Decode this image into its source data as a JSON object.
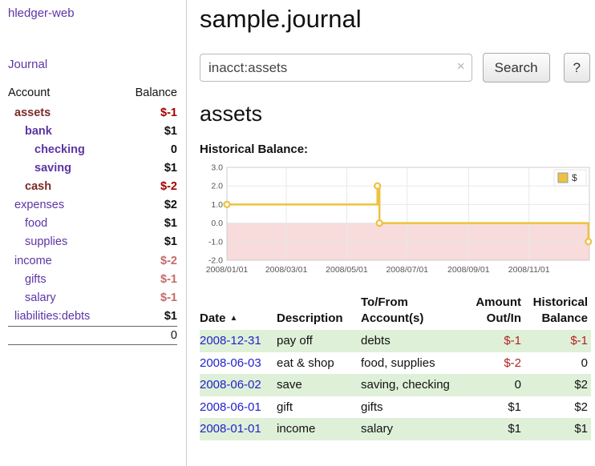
{
  "app": {
    "title": "hledger-web"
  },
  "sidebar": {
    "journal_link": "Journal",
    "accounts_header": {
      "account": "Account",
      "balance": "Balance"
    },
    "accounts": [
      {
        "name": "assets",
        "balance": "$-1",
        "level": 1,
        "bold": true,
        "name_color": "maroon",
        "balance_color": "neg-strong"
      },
      {
        "name": "bank",
        "balance": "$1",
        "level": 2,
        "bold": true,
        "name_color": "purple",
        "balance_color": "pos"
      },
      {
        "name": "checking",
        "balance": "0",
        "level": 3,
        "bold": true,
        "name_color": "purple",
        "balance_color": "pos"
      },
      {
        "name": "saving",
        "balance": "$1",
        "level": 3,
        "bold": true,
        "name_color": "purple",
        "balance_color": "pos"
      },
      {
        "name": "cash",
        "balance": "$-2",
        "level": 2,
        "bold": true,
        "name_color": "maroon",
        "balance_color": "neg-strong"
      },
      {
        "name": "expenses",
        "balance": "$2",
        "level": 1,
        "bold": false,
        "name_color": "purple",
        "balance_color": "pos"
      },
      {
        "name": "food",
        "balance": "$1",
        "level": 2,
        "bold": false,
        "name_color": "purple",
        "balance_color": "pos"
      },
      {
        "name": "supplies",
        "balance": "$1",
        "level": 2,
        "bold": false,
        "name_color": "purple",
        "balance_color": "pos"
      },
      {
        "name": "income",
        "balance": "$-2",
        "level": 1,
        "bold": false,
        "name_color": "purple",
        "balance_color": "neg-soft"
      },
      {
        "name": "gifts",
        "balance": "$-1",
        "level": 2,
        "bold": false,
        "name_color": "purple",
        "balance_color": "neg-soft"
      },
      {
        "name": "salary",
        "balance": "$-1",
        "level": 2,
        "bold": false,
        "name_color": "purple",
        "balance_color": "neg-soft"
      },
      {
        "name": "liabilities:debts",
        "balance": "$1",
        "level": 1,
        "bold": false,
        "name_color": "purple",
        "balance_color": "pos"
      }
    ],
    "total": "0"
  },
  "main": {
    "title": "sample.journal",
    "search": {
      "value": "inacct:assets",
      "clear_icon": "×",
      "button_label": "Search",
      "help_label": "?"
    },
    "heading": "assets"
  },
  "chart_data": {
    "type": "line",
    "title": "Historical Balance:",
    "step": true,
    "series": [
      {
        "name": "$",
        "points": [
          [
            "2008-01-01",
            1
          ],
          [
            "2008-06-01",
            2
          ],
          [
            "2008-06-03",
            0
          ],
          [
            "2008-12-31",
            -1
          ]
        ]
      }
    ],
    "ylim": [
      -2.0,
      3.0
    ],
    "yticks": [
      "3.0",
      "2.0",
      "1.0",
      "0.0",
      "-1.0",
      "-2.0"
    ],
    "xticks": [
      [
        "2008-01-01",
        "2008/01/01"
      ],
      [
        "2008-03-01",
        "2008/03/01"
      ],
      [
        "2008-05-01",
        "2008/05/01"
      ],
      [
        "2008-07-01",
        "2008/07/01"
      ],
      [
        "2008-09-01",
        "2008/09/01"
      ],
      [
        "2008-11-01",
        "2008/11/01"
      ]
    ],
    "x_domain": [
      "2008-01-01",
      "2009-01-01"
    ],
    "legend_position": "top-right",
    "grid": true,
    "line_color": "#edc240",
    "marker_fill": "#ffffff",
    "negative_region_color": "#f8dbdb",
    "grid_color": "#e8e8e8",
    "legend": {
      "label": "$",
      "swatch_color": "#edc240"
    }
  },
  "table": {
    "headers": {
      "date": "Date",
      "sort_icon": "▲",
      "description": "Description",
      "accounts": "To/From\nAccount(s)",
      "amount": "Amount\nOut/In",
      "balance": "Historical\nBalance"
    },
    "rows": [
      {
        "date": "2008-12-31",
        "description": "pay off",
        "accounts": "debts",
        "amount": "$-1",
        "balance": "$-1"
      },
      {
        "date": "2008-06-03",
        "description": "eat & shop",
        "accounts": "food, supplies",
        "amount": "$-2",
        "balance": "0"
      },
      {
        "date": "2008-06-02",
        "description": "save",
        "accounts": "saving, checking",
        "amount": "0",
        "balance": "$2"
      },
      {
        "date": "2008-06-01",
        "description": "gift",
        "accounts": "gifts",
        "amount": "$1",
        "balance": "$2"
      },
      {
        "date": "2008-01-01",
        "description": "income",
        "accounts": "salary",
        "amount": "$1",
        "balance": "$1"
      }
    ]
  },
  "colors": {
    "link_purple": "#5c35a5",
    "maroon_account": "#7d2a2a",
    "negative_strong": "#a40000",
    "negative_soft": "#c76a6a",
    "date_link_blue": "#2222cc",
    "negative_amount": "#b22222",
    "row_alt_green": "#dff0d8"
  }
}
